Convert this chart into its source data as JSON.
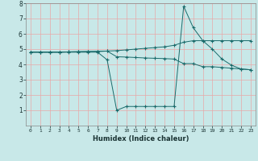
{
  "xlabel": "Humidex (Indice chaleur)",
  "background_color": "#c8e8e8",
  "grid_color": "#e8a8a8",
  "line_color": "#1a6b6b",
  "xlim": [
    -0.5,
    23.5
  ],
  "ylim": [
    0,
    8
  ],
  "xticks": [
    0,
    1,
    2,
    3,
    4,
    5,
    6,
    7,
    8,
    9,
    10,
    11,
    12,
    13,
    14,
    15,
    16,
    17,
    18,
    19,
    20,
    21,
    22,
    23
  ],
  "yticks": [
    1,
    2,
    3,
    4,
    5,
    6,
    7,
    8
  ],
  "line1_x": [
    0,
    1,
    2,
    3,
    4,
    5,
    6,
    7,
    8,
    9,
    10,
    11,
    12,
    13,
    14,
    15,
    16,
    17,
    18,
    19,
    20,
    21,
    22,
    23
  ],
  "line1_y": [
    4.8,
    4.8,
    4.8,
    4.8,
    4.82,
    4.83,
    4.84,
    4.85,
    4.87,
    4.9,
    4.95,
    5.0,
    5.05,
    5.1,
    5.15,
    5.25,
    5.45,
    5.55,
    5.55,
    5.55,
    5.55,
    5.55,
    5.55,
    5.55
  ],
  "line2_x": [
    0,
    1,
    2,
    3,
    4,
    5,
    6,
    7,
    8,
    9,
    10,
    11,
    12,
    13,
    14,
    15,
    16,
    17,
    18,
    19,
    20,
    21,
    22,
    23
  ],
  "line2_y": [
    4.8,
    4.8,
    4.8,
    4.8,
    4.82,
    4.83,
    4.84,
    4.85,
    4.87,
    4.5,
    4.48,
    4.45,
    4.42,
    4.4,
    4.38,
    4.35,
    4.05,
    4.05,
    3.85,
    3.85,
    3.8,
    3.75,
    3.7,
    3.65
  ],
  "line3_x": [
    0,
    1,
    2,
    3,
    4,
    5,
    6,
    7,
    8,
    9,
    10,
    11,
    12,
    13,
    14,
    15,
    16,
    17,
    18,
    19,
    20,
    21,
    22,
    23
  ],
  "line3_y": [
    4.8,
    4.8,
    4.8,
    4.8,
    4.8,
    4.8,
    4.8,
    4.8,
    4.3,
    1.0,
    1.25,
    1.25,
    1.25,
    1.25,
    1.25,
    1.25,
    7.8,
    6.4,
    5.55,
    5.0,
    4.35,
    3.95,
    3.7,
    3.65
  ]
}
